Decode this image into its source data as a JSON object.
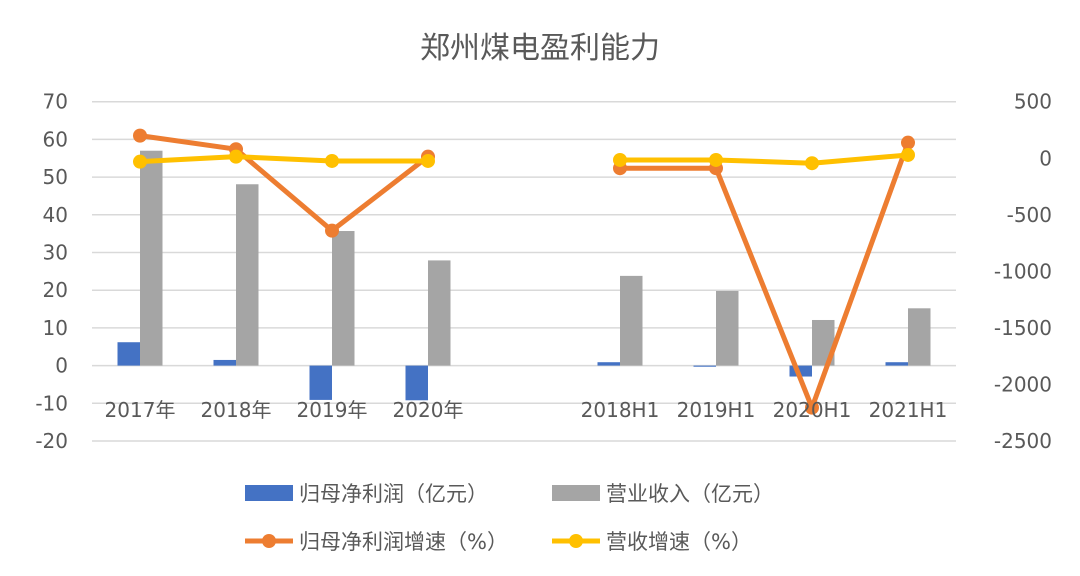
{
  "chart_data": {
    "type": "bar",
    "title": "郑州煤电盈利能力",
    "categories": [
      "2017年",
      "2018年",
      "2019年",
      "2020年",
      "",
      "2018H1",
      "2019H1",
      "2020H1",
      "2021H1"
    ],
    "y_left": {
      "range": [
        -20,
        70
      ],
      "ticks": [
        -20,
        -10,
        0,
        10,
        20,
        30,
        40,
        50,
        60,
        70
      ]
    },
    "y_right": {
      "range": [
        -2500,
        500
      ],
      "ticks": [
        -2500,
        -2000,
        -1500,
        -1000,
        -500,
        0,
        500
      ]
    },
    "grid": true,
    "legend_position": "bottom",
    "series": [
      {
        "name": "归母净利润（亿元）",
        "type": "bar",
        "axis": "left",
        "color": "#4472C4",
        "values": [
          6.2,
          1.5,
          -9.1,
          -9.2,
          null,
          0.9,
          -0.3,
          -2.9,
          0.9
        ]
      },
      {
        "name": "营业收入（亿元）",
        "type": "bar",
        "axis": "left",
        "color": "#A5A5A5",
        "values": [
          57.0,
          48.1,
          35.7,
          27.9,
          null,
          23.8,
          19.8,
          12.1,
          15.2
        ]
      },
      {
        "name": "归母净利润增速（%）",
        "type": "line",
        "axis": "right",
        "color": "#ED7D31",
        "values": [
          200,
          80,
          -640,
          14,
          null,
          -88,
          -88,
          -2205,
          138
        ]
      },
      {
        "name": "营收增速（%）",
        "type": "line",
        "axis": "right",
        "color": "#FFC000",
        "values": [
          -30,
          14,
          -24,
          -24,
          null,
          -15,
          -15,
          -44,
          29
        ]
      }
    ]
  }
}
